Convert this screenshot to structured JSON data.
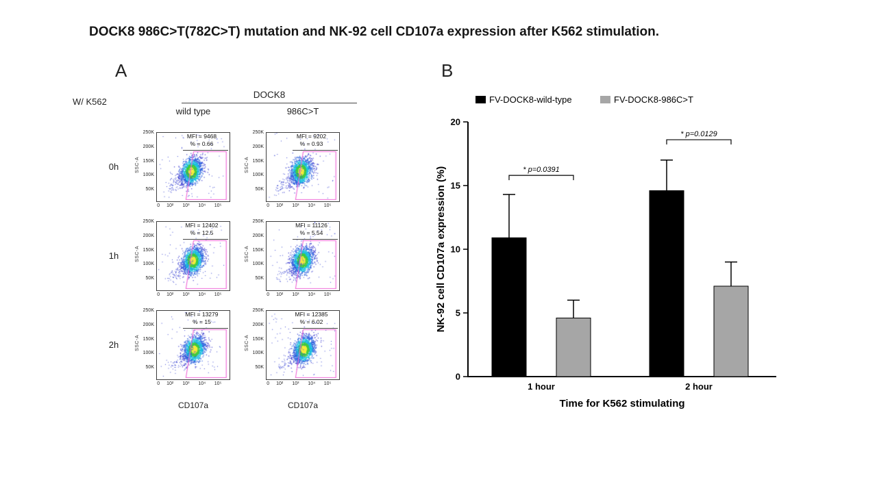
{
  "figure": {
    "title": "DOCK8 986C>T(782C>T) mutation and NK-92 cell CD107a expression after K562 stimulation.",
    "background": "#ffffff"
  },
  "panels": {
    "a": {
      "label": "A"
    },
    "b": {
      "label": "B"
    }
  },
  "chart_data": [
    {
      "type": "scatter",
      "panel": "A",
      "subtype": "flow-cytometry-pseudocolor",
      "condition_label": "W/ K562",
      "group_header": "DOCK8",
      "columns": [
        "wild type",
        "986C>T"
      ],
      "rows": [
        "0h",
        "1h",
        "2h"
      ],
      "x_axis": {
        "label": "CD107a",
        "scale": "log",
        "ticks": [
          "0",
          "10²",
          "10³",
          "10⁴",
          "10⁵"
        ]
      },
      "y_axis": {
        "label": "SSC-A",
        "ticks": [
          "250K",
          "200K",
          "150K",
          "100K",
          "50K"
        ]
      },
      "gate_color": "#ef62d5",
      "plots": [
        {
          "row": "0h",
          "column": "wild type",
          "mfi": 9468,
          "percent": 0.66,
          "mfi_label": "MFI = 9468",
          "percent_label": "% = 0.66"
        },
        {
          "row": "0h",
          "column": "986C>T",
          "mfi": 9202,
          "percent": 0.93,
          "mfi_label": "MFI = 9202",
          "percent_label": "% = 0.93"
        },
        {
          "row": "1h",
          "column": "wild type",
          "mfi": 12402,
          "percent": 12.5,
          "mfi_label": "MFI = 12402",
          "percent_label": "% = 12.5"
        },
        {
          "row": "1h",
          "column": "986C>T",
          "mfi": 11126,
          "percent": 5.54,
          "mfi_label": "MFI = 11126",
          "percent_label": "% = 5.54"
        },
        {
          "row": "2h",
          "column": "wild type",
          "mfi": 13279,
          "percent": 15,
          "mfi_label": "MFI = 13279",
          "percent_label": "% = 15"
        },
        {
          "row": "2h",
          "column": "986C>T",
          "mfi": 12385,
          "percent": 6.02,
          "mfi_label": "MFI = 12385",
          "percent_label": "% = 6.02"
        }
      ]
    },
    {
      "type": "bar",
      "panel": "B",
      "categories": [
        "1 hour",
        "2 hour"
      ],
      "series": [
        {
          "name": "FV-DOCK8-wild-type",
          "color": "#000000",
          "values": [
            10.9,
            14.6
          ],
          "errors_up": [
            3.4,
            2.4
          ]
        },
        {
          "name": "FV-DOCK8-986C>T",
          "color": "#a6a6a6",
          "values": [
            4.6,
            7.1
          ],
          "errors_up": [
            1.4,
            1.9
          ]
        }
      ],
      "ylabel": "NK-92 cell CD107a expression (%)",
      "xlabel": "Time for K562 stimulating",
      "ylim": [
        0,
        20
      ],
      "yticks": [
        0,
        5,
        10,
        15,
        20
      ],
      "legend_position": "top",
      "grid": false,
      "significance": [
        {
          "category": "1 hour",
          "label": "* p=0.0391",
          "y": 15.8
        },
        {
          "category": "2 hour",
          "label": "* p=0.0129",
          "y": 18.6
        }
      ]
    }
  ]
}
